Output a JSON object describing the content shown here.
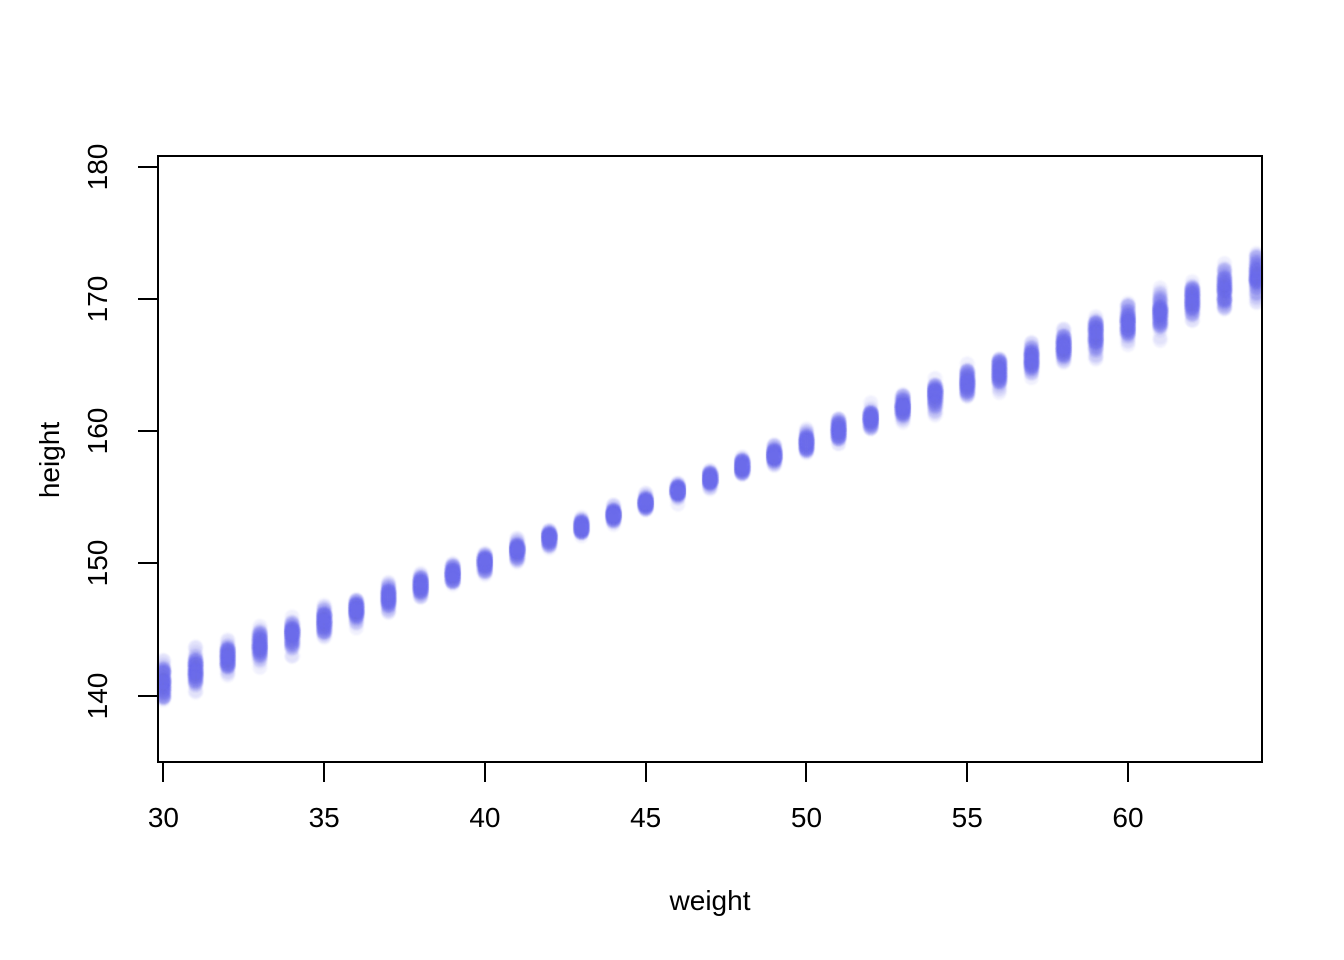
{
  "figure": {
    "background": "#ffffff",
    "text_color": "#000000"
  },
  "chart_data": {
    "type": "scatter",
    "title": "",
    "xlabel": "weight",
    "ylabel": "height",
    "xlim": [
      29.8,
      64.2
    ],
    "ylim": [
      134.9,
      180.9
    ],
    "x_ticks": [
      30,
      35,
      40,
      45,
      50,
      55,
      60
    ],
    "y_ticks": [
      140,
      150,
      160,
      170,
      180
    ],
    "grid": false,
    "legend": null,
    "point_color": "#6C6CEA",
    "point_alpha": 0.1,
    "point_radius_px": 8.5,
    "points_per_cluster": 100,
    "cluster_weights": [
      30,
      31,
      32,
      33,
      34,
      35,
      36,
      37,
      38,
      39,
      40,
      41,
      42,
      43,
      44,
      45,
      46,
      47,
      48,
      49,
      50,
      51,
      52,
      53,
      54,
      55,
      56,
      57,
      58,
      59,
      60,
      61,
      62,
      63,
      64
    ],
    "cluster_mean_height": [
      141.06,
      141.96,
      142.87,
      143.77,
      144.67,
      145.58,
      146.48,
      147.38,
      148.29,
      149.19,
      150.09,
      151.0,
      151.9,
      152.8,
      153.71,
      154.61,
      155.51,
      156.41,
      157.32,
      158.22,
      159.12,
      160.03,
      160.93,
      161.83,
      162.74,
      163.64,
      164.54,
      165.45,
      166.35,
      167.25,
      168.16,
      169.06,
      169.96,
      170.87,
      171.77
    ],
    "cluster_sd_height": [
      0.685,
      0.647,
      0.609,
      0.572,
      0.535,
      0.499,
      0.465,
      0.431,
      0.399,
      0.369,
      0.342,
      0.318,
      0.298,
      0.283,
      0.273,
      0.27,
      0.273,
      0.283,
      0.298,
      0.318,
      0.342,
      0.369,
      0.399,
      0.431,
      0.465,
      0.499,
      0.535,
      0.572,
      0.609,
      0.647,
      0.685,
      0.724,
      0.763,
      0.803,
      0.842
    ]
  }
}
